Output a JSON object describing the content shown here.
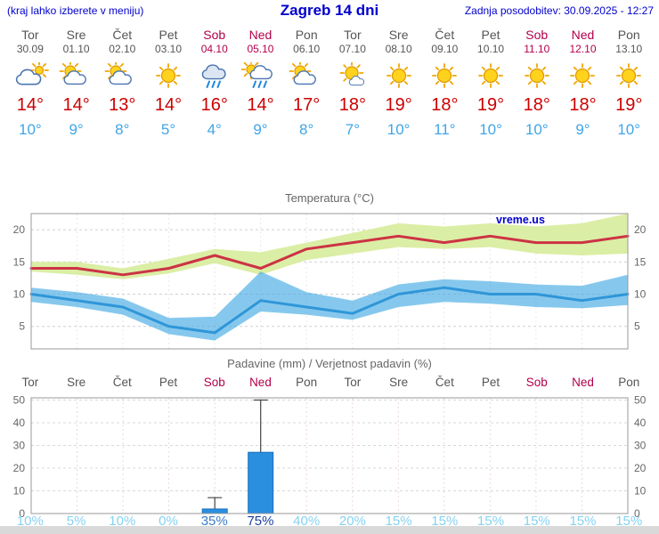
{
  "header": {
    "hint": "(kraj lahko izberete v meniju)",
    "title": "Zagreb 14 dni",
    "updated": "Zadnja posodobitev: 30.09.2025 - 12:27"
  },
  "degree": "°",
  "colors": {
    "accent_blue": "#0000CC",
    "weekday": "#555555",
    "weekend": "#B3004B",
    "high_temp": "#CC0000",
    "low_temp": "#3FA5E8",
    "temp_max_line": "#CC3344",
    "temp_max_band": "#D9EDA0",
    "temp_min_line": "#2F96D8",
    "temp_min_band": "#45AAE4",
    "bar_fill": "#2B8FE0",
    "bar_stroke": "#1A6FB8",
    "prob_low": "#85D2F2",
    "prob_med": "#3B7DC8",
    "prob_high": "#1C3F9E"
  },
  "days": [
    {
      "name": "Tor",
      "date": "30.09",
      "icon": "cloudy",
      "high": 14,
      "low": 10,
      "weekend": false
    },
    {
      "name": "Sre",
      "date": "01.10",
      "icon": "partly-cloudy",
      "high": 14,
      "low": 9,
      "weekend": false
    },
    {
      "name": "Čet",
      "date": "02.10",
      "icon": "partly-cloudy",
      "high": 13,
      "low": 8,
      "weekend": false
    },
    {
      "name": "Pet",
      "date": "03.10",
      "icon": "sunny",
      "high": 14,
      "low": 5,
      "weekend": false
    },
    {
      "name": "Sob",
      "date": "04.10",
      "icon": "rain",
      "high": 16,
      "low": 4,
      "weekend": true
    },
    {
      "name": "Ned",
      "date": "05.10",
      "icon": "sun-showers",
      "high": 14,
      "low": 9,
      "weekend": true
    },
    {
      "name": "Pon",
      "date": "06.10",
      "icon": "partly-cloudy",
      "high": 17,
      "low": 8,
      "weekend": false
    },
    {
      "name": "Tor",
      "date": "07.10",
      "icon": "mostly-sunny",
      "high": 18,
      "low": 7,
      "weekend": false
    },
    {
      "name": "Sre",
      "date": "08.10",
      "icon": "sunny",
      "high": 19,
      "low": 10,
      "weekend": false
    },
    {
      "name": "Čet",
      "date": "09.10",
      "icon": "sunny",
      "high": 18,
      "low": 11,
      "weekend": false
    },
    {
      "name": "Pet",
      "date": "10.10",
      "icon": "sunny",
      "high": 19,
      "low": 10,
      "weekend": false
    },
    {
      "name": "Sob",
      "date": "11.10",
      "icon": "sunny",
      "high": 18,
      "low": 10,
      "weekend": true
    },
    {
      "name": "Ned",
      "date": "12.10",
      "icon": "sunny",
      "high": 18,
      "low": 9,
      "weekend": true
    },
    {
      "name": "Pon",
      "date": "13.10",
      "icon": "sunny",
      "high": 19,
      "low": 10,
      "weekend": false
    }
  ],
  "chart_data": [
    {
      "type": "area",
      "title": "Temperatura (°C)",
      "watermark": "vreme.us",
      "categories": [
        "Tor",
        "Sre",
        "Čet",
        "Pet",
        "Sob",
        "Ned",
        "Pon",
        "Tor",
        "Sre",
        "Čet",
        "Pet",
        "Sob",
        "Ned",
        "Pon"
      ],
      "ylim": [
        1.5,
        22.5
      ],
      "yticks": [
        5,
        10,
        15,
        20
      ],
      "grid": true,
      "legend": "none",
      "series": [
        {
          "name": "max",
          "values": [
            14,
            14,
            13,
            14,
            16,
            14,
            17,
            18,
            19,
            18,
            19,
            18,
            18,
            19
          ]
        },
        {
          "name": "max_upper",
          "values": [
            15,
            15,
            14,
            15.5,
            17,
            16.5,
            18,
            19.5,
            21,
            20.5,
            21,
            20.5,
            21,
            22.5
          ]
        },
        {
          "name": "max_lower",
          "values": [
            13.5,
            13,
            12.3,
            13.2,
            14.8,
            13,
            15.3,
            16.3,
            17.3,
            17,
            17.3,
            16.3,
            16,
            16.3
          ]
        },
        {
          "name": "min",
          "values": [
            10,
            9,
            8,
            5,
            4,
            9,
            8,
            7,
            10,
            11,
            10,
            10,
            9,
            10
          ]
        },
        {
          "name": "min_upper",
          "values": [
            11,
            10.3,
            9.3,
            6.3,
            6.5,
            13.5,
            10.3,
            9,
            11.5,
            12.3,
            12,
            11.5,
            11.3,
            13
          ]
        },
        {
          "name": "min_lower",
          "values": [
            8.8,
            8,
            6.8,
            3.8,
            2.8,
            7.3,
            6.8,
            6,
            8,
            8.8,
            8.5,
            8,
            7.8,
            8.3
          ]
        }
      ]
    },
    {
      "type": "bar",
      "title": "Padavine (mm) / Verjetnost padavin (%)",
      "categories": [
        "Tor",
        "Sre",
        "Čet",
        "Pet",
        "Sob",
        "Ned",
        "Pon",
        "Tor",
        "Sre",
        "Čet",
        "Pet",
        "Sob",
        "Ned",
        "Pon"
      ],
      "values_mm": [
        0,
        0,
        0,
        0,
        2,
        27,
        0,
        0,
        0,
        0,
        0,
        0,
        0,
        0
      ],
      "whisker_max_mm": [
        0,
        0,
        0,
        0,
        7,
        50,
        0,
        0,
        0,
        0,
        0,
        0,
        0,
        0
      ],
      "probability_pct": [
        10,
        5,
        10,
        0,
        35,
        75,
        40,
        20,
        15,
        15,
        15,
        15,
        15,
        15
      ],
      "ylim": [
        0,
        51
      ],
      "yticks": [
        0,
        10,
        20,
        30,
        40,
        50
      ],
      "grid": true,
      "legend": "none"
    }
  ]
}
